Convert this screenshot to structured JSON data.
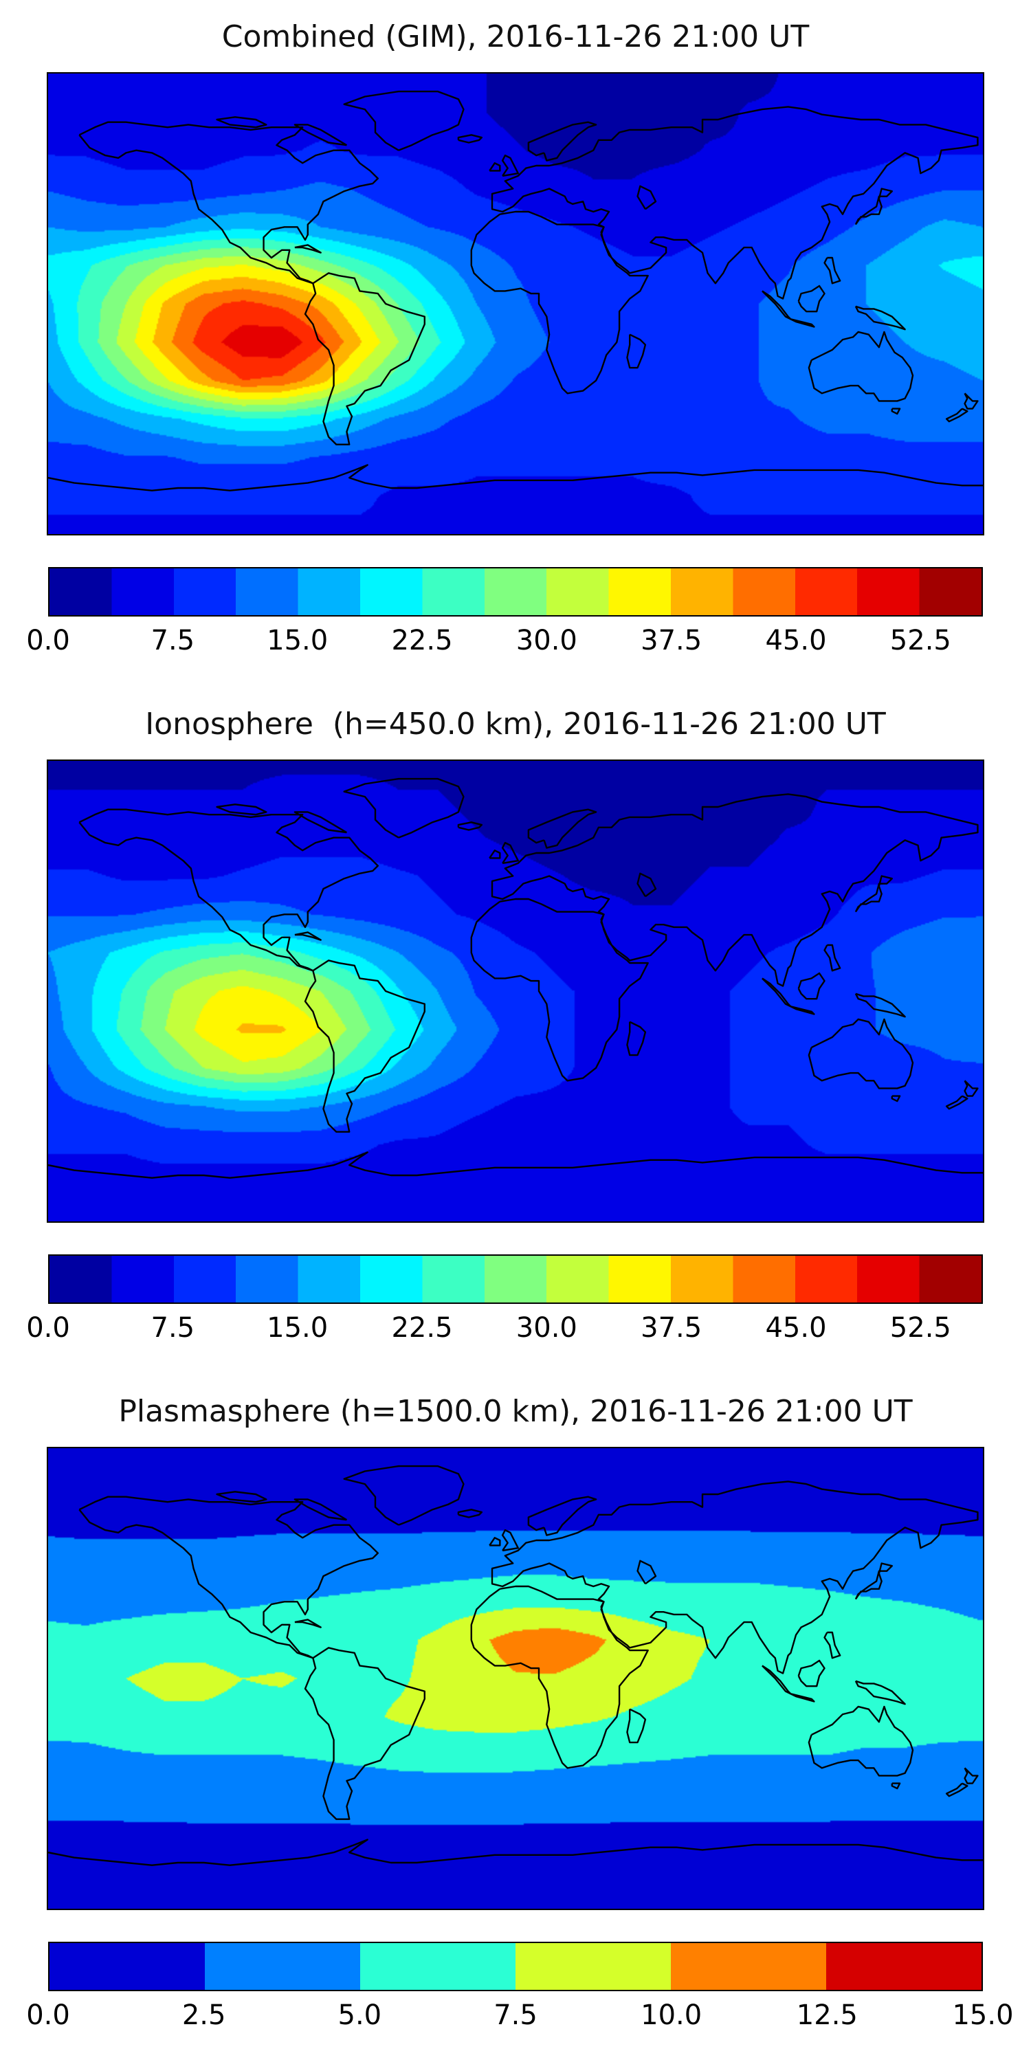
{
  "chart_data": [
    {
      "type": "heatmap",
      "title": "Combined (GIM), 2016-11-26 21:00 UT",
      "projection": "equirectangular",
      "lon": [
        -180,
        -165,
        -150,
        -135,
        -120,
        -105,
        -90,
        -75,
        -60,
        -45,
        -30,
        -15,
        0,
        15,
        30,
        45,
        60,
        75,
        90,
        105,
        120,
        135,
        150,
        165,
        180
      ],
      "lat": [
        90,
        75,
        60,
        45,
        30,
        15,
        0,
        -15,
        -30,
        -45,
        -60,
        -75,
        -90
      ],
      "values": [
        [
          4,
          4,
          4,
          4,
          4,
          4,
          4,
          4,
          4,
          4,
          4,
          4,
          3,
          3,
          3,
          3,
          3,
          3,
          3,
          4,
          4,
          4,
          4,
          4,
          4
        ],
        [
          5,
          5,
          5,
          5,
          5,
          5,
          6,
          6,
          6,
          5,
          5,
          4,
          3,
          2,
          2,
          2,
          3,
          3,
          4,
          4,
          5,
          5,
          5,
          5,
          5
        ],
        [
          7,
          7,
          6,
          6,
          6,
          7,
          7,
          8,
          7,
          7,
          6,
          5,
          4,
          3,
          3,
          3,
          3,
          4,
          4,
          5,
          6,
          6,
          7,
          7,
          7
        ],
        [
          11,
          10,
          9,
          9,
          9,
          10,
          11,
          12,
          11,
          10,
          9,
          7,
          6,
          5,
          4,
          4,
          5,
          5,
          6,
          7,
          8,
          9,
          10,
          11,
          11
        ],
        [
          15,
          14,
          14,
          15,
          17,
          18,
          17,
          15,
          13,
          12,
          11,
          10,
          9,
          8,
          7,
          6,
          6,
          7,
          8,
          9,
          10,
          12,
          14,
          16,
          15
        ],
        [
          20,
          22,
          26,
          30,
          33,
          34,
          32,
          28,
          24,
          20,
          16,
          13,
          11,
          10,
          9,
          8,
          8,
          9,
          10,
          11,
          13,
          15,
          17,
          19,
          20
        ],
        [
          18,
          24,
          30,
          38,
          44,
          46,
          44,
          40,
          33,
          26,
          20,
          15,
          12,
          10,
          9,
          8,
          8,
          9,
          11,
          12,
          14,
          15,
          16,
          17,
          18
        ],
        [
          17,
          24,
          32,
          40,
          47,
          51,
          52,
          46,
          38,
          30,
          23,
          17,
          13,
          11,
          10,
          9,
          9,
          10,
          11,
          12,
          13,
          14,
          15,
          16,
          17
        ],
        [
          15,
          20,
          26,
          33,
          40,
          45,
          44,
          39,
          31,
          24,
          18,
          14,
          11,
          10,
          9,
          9,
          9,
          10,
          11,
          12,
          13,
          13,
          14,
          14,
          15
        ],
        [
          13,
          14,
          16,
          18,
          20,
          22,
          22,
          20,
          17,
          14,
          12,
          10,
          9,
          9,
          9,
          9,
          9,
          10,
          11,
          11,
          12,
          12,
          13,
          13,
          13
        ],
        [
          10,
          10,
          11,
          11,
          12,
          12,
          12,
          11,
          10,
          9,
          9,
          8,
          8,
          8,
          8,
          8,
          9,
          9,
          9,
          10,
          10,
          10,
          10,
          10,
          10
        ],
        [
          8,
          8,
          8,
          8,
          8,
          8,
          8,
          8,
          8,
          7,
          7,
          7,
          7,
          7,
          7,
          7,
          7,
          8,
          8,
          8,
          8,
          8,
          8,
          8,
          8
        ],
        [
          7,
          7,
          7,
          7,
          7,
          7,
          7,
          7,
          7,
          7,
          7,
          7,
          7,
          7,
          7,
          7,
          7,
          7,
          7,
          7,
          7,
          7,
          7,
          7,
          7
        ]
      ],
      "colorbar": {
        "vmin": 0,
        "vmax": 56.25,
        "n_levels": 15,
        "colormap": "jet",
        "tick_values": [
          0,
          7.5,
          15,
          22.5,
          30,
          37.5,
          45,
          52.5
        ],
        "tick_labels": [
          "0.0",
          "7.5",
          "15.0",
          "22.5",
          "30.0",
          "37.5",
          "45.0",
          "52.5"
        ]
      }
    },
    {
      "type": "heatmap",
      "title": "Ionosphere  (h=450.0 km), 2016-11-26 21:00 UT",
      "projection": "equirectangular",
      "lon": [
        -180,
        -165,
        -150,
        -135,
        -120,
        -105,
        -90,
        -75,
        -60,
        -45,
        -30,
        -15,
        0,
        15,
        30,
        45,
        60,
        75,
        90,
        105,
        120,
        135,
        150,
        165,
        180
      ],
      "lat": [
        90,
        75,
        60,
        45,
        30,
        15,
        0,
        -15,
        -30,
        -45,
        -60,
        -75,
        -90
      ],
      "values": [
        [
          3,
          3,
          3,
          3,
          3,
          3,
          3,
          3,
          3,
          3,
          3,
          3,
          3,
          3,
          3,
          3,
          3,
          3,
          3,
          3,
          3,
          3,
          3,
          3,
          3
        ],
        [
          4,
          4,
          4,
          4,
          4,
          4,
          5,
          5,
          5,
          4,
          4,
          3,
          2,
          2,
          2,
          2,
          2,
          3,
          3,
          3,
          4,
          4,
          4,
          4,
          4
        ],
        [
          5,
          5,
          5,
          5,
          5,
          5,
          6,
          6,
          6,
          5,
          5,
          4,
          3,
          2,
          2,
          2,
          2,
          3,
          3,
          4,
          4,
          5,
          5,
          5,
          5
        ],
        [
          8,
          8,
          7,
          7,
          7,
          8,
          9,
          9,
          9,
          8,
          7,
          6,
          5,
          4,
          3,
          3,
          3,
          4,
          4,
          5,
          6,
          7,
          7,
          8,
          8
        ],
        [
          11,
          11,
          11,
          12,
          13,
          13,
          12,
          11,
          10,
          9,
          8,
          7,
          6,
          5,
          5,
          4,
          4,
          5,
          6,
          6,
          7,
          9,
          10,
          11,
          11
        ],
        [
          15,
          17,
          20,
          23,
          25,
          26,
          24,
          21,
          18,
          15,
          12,
          10,
          8,
          7,
          6,
          6,
          6,
          6,
          7,
          8,
          9,
          11,
          13,
          14,
          15
        ],
        [
          14,
          18,
          23,
          29,
          33,
          35,
          33,
          30,
          25,
          19,
          15,
          11,
          9,
          8,
          7,
          6,
          6,
          7,
          8,
          9,
          10,
          11,
          12,
          13,
          14
        ],
        [
          13,
          18,
          24,
          30,
          35,
          38,
          38,
          34,
          28,
          22,
          17,
          13,
          10,
          8,
          7,
          7,
          7,
          7,
          8,
          9,
          10,
          11,
          12,
          12,
          13
        ],
        [
          11,
          15,
          20,
          25,
          30,
          33,
          32,
          28,
          23,
          18,
          14,
          11,
          9,
          8,
          7,
          7,
          7,
          7,
          8,
          9,
          9,
          10,
          10,
          11,
          11
        ],
        [
          10,
          11,
          12,
          14,
          15,
          16,
          16,
          15,
          13,
          11,
          9,
          8,
          7,
          7,
          7,
          7,
          7,
          7,
          8,
          8,
          9,
          9,
          10,
          10,
          10
        ],
        [
          8,
          8,
          8,
          9,
          9,
          9,
          9,
          9,
          8,
          7,
          7,
          6,
          6,
          6,
          6,
          6,
          6,
          7,
          7,
          7,
          8,
          8,
          8,
          8,
          8
        ],
        [
          6,
          6,
          6,
          6,
          6,
          6,
          6,
          6,
          6,
          6,
          6,
          6,
          6,
          6,
          6,
          6,
          6,
          6,
          6,
          6,
          6,
          6,
          6,
          6,
          6
        ],
        [
          6,
          6,
          6,
          6,
          6,
          6,
          6,
          6,
          6,
          6,
          6,
          6,
          6,
          6,
          6,
          6,
          6,
          6,
          6,
          6,
          6,
          6,
          6,
          6,
          6
        ]
      ],
      "colorbar": {
        "vmin": 0,
        "vmax": 56.25,
        "n_levels": 15,
        "colormap": "jet",
        "tick_values": [
          0,
          7.5,
          15,
          22.5,
          30,
          37.5,
          45,
          52.5
        ],
        "tick_labels": [
          "0.0",
          "7.5",
          "15.0",
          "22.5",
          "30.0",
          "37.5",
          "45.0",
          "52.5"
        ]
      }
    },
    {
      "type": "heatmap",
      "title": "Plasmasphere (h=1500.0 km), 2016-11-26 21:00 UT",
      "projection": "equirectangular",
      "lon": [
        -180,
        -165,
        -150,
        -135,
        -120,
        -105,
        -90,
        -75,
        -60,
        -45,
        -30,
        -15,
        0,
        15,
        30,
        45,
        60,
        75,
        90,
        105,
        120,
        135,
        150,
        165,
        180
      ],
      "lat": [
        90,
        75,
        60,
        45,
        30,
        15,
        0,
        -15,
        -30,
        -45,
        -60,
        -75,
        -90
      ],
      "values": [
        [
          1.5,
          1.5,
          1.5,
          1.5,
          1.5,
          1.5,
          1.5,
          1.5,
          1.5,
          1.5,
          1.5,
          1.5,
          1.5,
          1.5,
          1.5,
          1.5,
          1.5,
          1.5,
          1.5,
          1.5,
          1.5,
          1.5,
          1.5,
          1.5,
          1.5
        ],
        [
          1.8,
          1.8,
          1.8,
          1.8,
          1.8,
          1.8,
          1.8,
          1.8,
          1.8,
          1.8,
          1.8,
          1.8,
          1.8,
          1.8,
          1.8,
          1.8,
          1.8,
          1.8,
          1.8,
          1.8,
          1.8,
          1.8,
          1.8,
          1.8,
          1.8
        ],
        [
          2.2,
          2.2,
          2.2,
          2.2,
          2.2,
          2.2,
          2.2,
          2.2,
          2.2,
          2.2,
          2.2,
          2.2,
          2.2,
          2.2,
          2.2,
          2.2,
          2.2,
          2.2,
          2.2,
          2.2,
          2.2,
          2.2,
          2.2,
          2.2,
          2.2
        ],
        [
          3.2,
          3,
          3,
          3,
          3,
          3.2,
          3.5,
          3.5,
          3.5,
          3.5,
          3.8,
          4,
          4.2,
          4.2,
          4,
          4,
          4,
          4,
          4,
          3.8,
          3.8,
          3.6,
          3.5,
          3.4,
          3.2
        ],
        [
          4.5,
          4.2,
          4.2,
          4.3,
          4.5,
          4.8,
          5,
          5.2,
          5.5,
          5.8,
          6.2,
          6.5,
          6.8,
          6.8,
          6.5,
          6.2,
          6,
          6,
          6,
          5.8,
          5.5,
          5.2,
          5,
          4.8,
          4.5
        ],
        [
          5.5,
          5.5,
          6,
          6.5,
          6.5,
          6,
          6,
          6.2,
          6.5,
          7,
          8,
          9.5,
          11,
          11.5,
          10.5,
          9,
          8,
          7.5,
          7,
          6.8,
          6.5,
          6.3,
          6,
          5.8,
          5.5
        ],
        [
          6,
          6.5,
          7.5,
          8.2,
          8.2,
          7.5,
          7.8,
          7,
          6.8,
          7.2,
          8.2,
          9,
          9.8,
          9.8,
          9.2,
          8.5,
          7.8,
          7.2,
          7,
          6.8,
          6.8,
          6.5,
          6.3,
          6,
          6
        ],
        [
          5.8,
          6,
          6.5,
          7,
          7,
          6.8,
          6.5,
          6.5,
          7,
          7.8,
          8.3,
          8.5,
          8.5,
          8.2,
          7.8,
          7.2,
          6.8,
          6.5,
          6.2,
          6,
          6,
          5.8,
          5.8,
          5.8,
          5.8
        ],
        [
          4.5,
          4.5,
          4.8,
          5,
          5,
          5,
          5,
          5.2,
          5.5,
          5.8,
          6,
          6,
          6,
          5.8,
          5.6,
          5.4,
          5.2,
          5,
          5,
          5,
          5,
          4.8,
          4.8,
          4.6,
          4.5
        ],
        [
          3.2,
          3.2,
          3.3,
          3.4,
          3.5,
          3.5,
          3.5,
          3.6,
          3.7,
          3.8,
          3.8,
          3.8,
          3.7,
          3.6,
          3.5,
          3.4,
          3.4,
          3.3,
          3.3,
          3.3,
          3.3,
          3.2,
          3.2,
          3.2,
          3.2
        ],
        [
          2.2,
          2.2,
          2.2,
          2.2,
          2.2,
          2.2,
          2.2,
          2.2,
          2.2,
          2.2,
          2.2,
          2.2,
          2.2,
          2.2,
          2.2,
          2.2,
          2.2,
          2.2,
          2.2,
          2.2,
          2.2,
          2.2,
          2.2,
          2.2,
          2.2
        ],
        [
          1.6,
          1.6,
          1.6,
          1.6,
          1.6,
          1.6,
          1.6,
          1.6,
          1.6,
          1.6,
          1.6,
          1.6,
          1.6,
          1.6,
          1.6,
          1.6,
          1.6,
          1.6,
          1.6,
          1.6,
          1.6,
          1.6,
          1.6,
          1.6,
          1.6
        ],
        [
          1.3,
          1.3,
          1.3,
          1.3,
          1.3,
          1.3,
          1.3,
          1.3,
          1.3,
          1.3,
          1.3,
          1.3,
          1.3,
          1.3,
          1.3,
          1.3,
          1.3,
          1.3,
          1.3,
          1.3,
          1.3,
          1.3,
          1.3,
          1.3,
          1.3
        ]
      ],
      "colorbar": {
        "vmin": 0,
        "vmax": 15,
        "n_levels": 6,
        "colormap": "jet",
        "tick_values": [
          0,
          2.5,
          5,
          7.5,
          10,
          12.5,
          15
        ],
        "tick_labels": [
          "0.0",
          "2.5",
          "5.0",
          "7.5",
          "10.0",
          "12.5",
          "15.0"
        ]
      }
    }
  ]
}
